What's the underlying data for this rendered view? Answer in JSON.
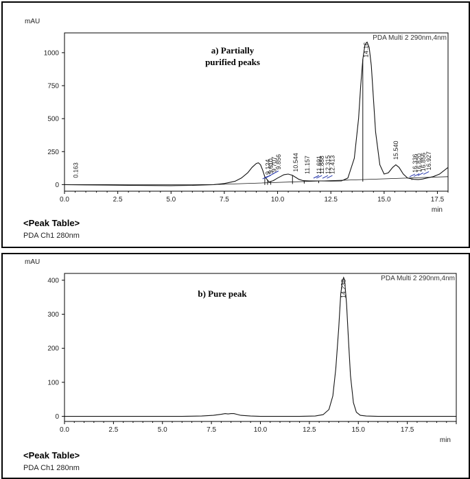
{
  "chart_data": [
    {
      "type": "line",
      "yunit": "mAU",
      "xunit": "min",
      "detector_label": "PDA Multi 2 290nm,4nm",
      "annotation": [
        "a) Partially",
        "purified peaks"
      ],
      "xlim": [
        0,
        18
      ],
      "ylim": [
        -50,
        1150
      ],
      "xticks": [
        0.0,
        2.5,
        5.0,
        7.5,
        10.0,
        12.5,
        15.0,
        17.5
      ],
      "xtick_labels": [
        "0.0",
        "2.5",
        "5.0",
        "7.5",
        "10.0",
        "12.5",
        "15.0",
        "17.5"
      ],
      "yticks": [
        0,
        250,
        500,
        750,
        1000
      ],
      "ytick_labels": [
        "0",
        "250",
        "500",
        "750",
        "1000"
      ],
      "series": [
        {
          "x": [
            0,
            1,
            2,
            3,
            4,
            5,
            6,
            7,
            7.5,
            8,
            8.3,
            8.6,
            8.8,
            9.0,
            9.1,
            9.2,
            9.3,
            9.4,
            9.6,
            9.8,
            10.0,
            10.3,
            10.5,
            10.7,
            11.0,
            11.2,
            11.5,
            12.0,
            12.5,
            13.0,
            13.3,
            13.6,
            13.8,
            13.9,
            14.0,
            14.1,
            14.2,
            14.3,
            14.4,
            14.5,
            14.6,
            14.8,
            15.0,
            15.2,
            15.4,
            15.55,
            15.7,
            15.9,
            16.1,
            16.4,
            16.6,
            16.8,
            17.0,
            17.3,
            17.6,
            18.0
          ],
          "y": [
            0,
            -2,
            -4,
            -6,
            -7,
            -8,
            -6,
            0,
            8,
            25,
            50,
            90,
            130,
            160,
            165,
            150,
            110,
            60,
            20,
            30,
            50,
            75,
            80,
            70,
            40,
            30,
            28,
            28,
            27,
            28,
            50,
            200,
            500,
            750,
            950,
            1060,
            1080,
            1040,
            900,
            650,
            400,
            150,
            80,
            90,
            130,
            150,
            130,
            80,
            50,
            40,
            38,
            42,
            50,
            60,
            80,
            130
          ]
        }
      ],
      "baseline": {
        "x": [
          0,
          7.0,
          18.0
        ],
        "y": [
          0,
          0,
          60
        ]
      },
      "peaks": [
        {
          "label": "0.163",
          "x": 0.63
        },
        {
          "label": "9.124",
          "x": 9.65
        },
        {
          "label": "9.610",
          "x": 9.78
        },
        {
          "label": "9.707",
          "x": 9.93
        },
        {
          "label": "9.856",
          "x": 10.14
        },
        {
          "label": "10.544",
          "x": 10.95
        },
        {
          "label": "11.157",
          "x": 11.5
        },
        {
          "label": "11.691",
          "x": 12.04
        },
        {
          "label": "11.888",
          "x": 12.18
        },
        {
          "label": "12.315",
          "x": 12.46
        },
        {
          "label": "12.413",
          "x": 12.67
        },
        {
          "label": "14.16",
          "x": 14.25
        },
        {
          "label": "15.540",
          "x": 15.65
        },
        {
          "label": "16.336",
          "x": 16.55
        },
        {
          "label": "16.820",
          "x": 16.75
        },
        {
          "label": "16.856",
          "x": 16.93
        },
        {
          "label": "16.927",
          "x": 17.2
        }
      ]
    },
    {
      "type": "line",
      "yunit": "mAU",
      "xunit": "min",
      "detector_label": "PDA Multi 2 290nm,4nm",
      "annotation": [
        "b) Pure peak"
      ],
      "xlim": [
        0,
        20
      ],
      "ylim": [
        -15,
        420
      ],
      "xticks": [
        0.0,
        2.5,
        5.0,
        7.5,
        10.0,
        12.5,
        15.0,
        17.5
      ],
      "xtick_labels": [
        "0.0",
        "2.5",
        "5.0",
        "7.5",
        "10.0",
        "12.5",
        "15.0",
        "17.5"
      ],
      "yticks": [
        0,
        100,
        200,
        300,
        400
      ],
      "ytick_labels": [
        "0",
        "100",
        "200",
        "300",
        "400"
      ],
      "series": [
        {
          "x": [
            0,
            2,
            4,
            6,
            7,
            7.6,
            8.0,
            8.2,
            8.35,
            8.5,
            8.65,
            8.8,
            9.0,
            9.5,
            10,
            11,
            12,
            12.8,
            13.2,
            13.5,
            13.7,
            13.85,
            14.0,
            14.1,
            14.2,
            14.25,
            14.3,
            14.4,
            14.5,
            14.6,
            14.75,
            14.9,
            15.1,
            15.4,
            16,
            17,
            18,
            19,
            20
          ],
          "y": [
            0,
            0,
            0,
            0,
            1,
            3,
            6,
            8,
            7,
            8,
            8,
            6,
            3,
            1,
            0,
            0,
            0,
            1,
            5,
            20,
            60,
            140,
            260,
            360,
            400,
            408,
            400,
            330,
            220,
            120,
            40,
            12,
            3,
            1,
            0,
            0,
            0,
            0,
            0
          ]
        }
      ],
      "peaks": [
        {
          "label": "14.238",
          "x": 14.35
        }
      ]
    }
  ],
  "panels": [
    {
      "peak_table": "<Peak Table>",
      "channel": "PDA Ch1 280nm"
    },
    {
      "peak_table": "<Peak Table>",
      "channel": "PDA Ch1 280nm"
    }
  ]
}
